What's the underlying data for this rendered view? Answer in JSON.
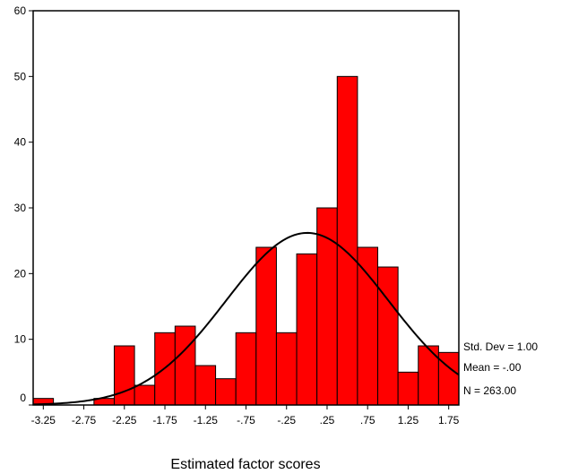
{
  "chart_data": {
    "type": "bar",
    "subtype": "histogram",
    "xlabel": "Estimated factor scores",
    "ylabel": "",
    "bin_width": 0.25,
    "x_tick_labels": [
      "-3.25",
      "-2.75",
      "-2.25",
      "-1.75",
      "-1.25",
      "-.75",
      "-.25",
      ".25",
      ".75",
      "1.25",
      "1.75"
    ],
    "x_tick_values": [
      -3.25,
      -2.75,
      -2.25,
      -1.75,
      -1.25,
      -0.75,
      -0.25,
      0.25,
      0.75,
      1.25,
      1.75
    ],
    "y_ticks": [
      0,
      10,
      20,
      30,
      40,
      50,
      60
    ],
    "ylim": [
      0,
      60
    ],
    "xlim": [
      -3.375,
      1.875
    ],
    "bin_centers": [
      -3.25,
      -3.0,
      -2.75,
      -2.5,
      -2.25,
      -2.0,
      -1.75,
      -1.5,
      -1.25,
      -1.0,
      -0.75,
      -0.5,
      -0.25,
      0.0,
      0.25,
      0.5,
      0.75,
      1.0,
      1.25,
      1.5,
      1.75
    ],
    "values": [
      1,
      0,
      0,
      1,
      9,
      3,
      11,
      12,
      6,
      4,
      11,
      24,
      11,
      23,
      30,
      50,
      24,
      21,
      5,
      9,
      8
    ],
    "bar_color": "#ff0000",
    "normal_curve": true,
    "stats": {
      "std_dev": "Std. Dev =  1.00",
      "mean": "Mean = -.00",
      "n": "N = 263.00"
    },
    "grid": false
  }
}
